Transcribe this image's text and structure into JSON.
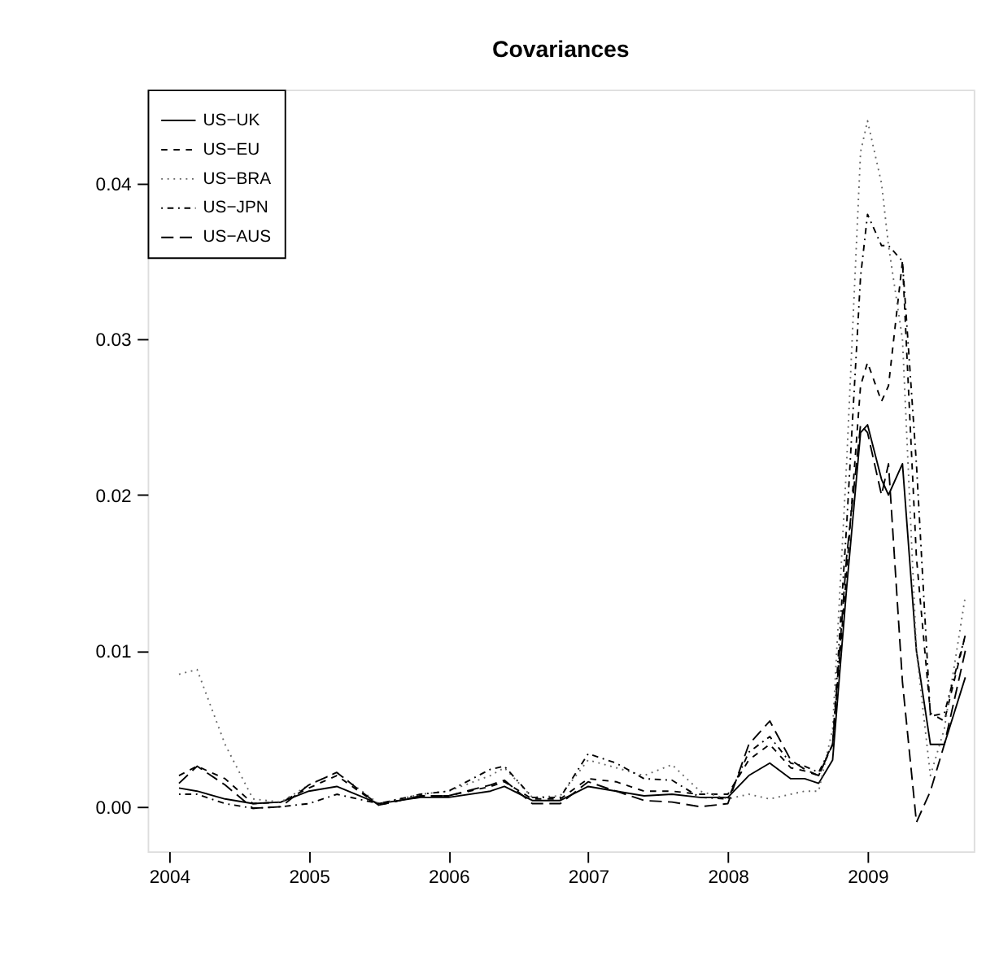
{
  "chart_data": {
    "type": "line",
    "title": "Covariances",
    "x": [
      2004.07,
      2004.2,
      2004.4,
      2004.6,
      2004.8,
      2005.0,
      2005.2,
      2005.5,
      2005.8,
      2006.0,
      2006.3,
      2006.4,
      2006.6,
      2006.8,
      2007.0,
      2007.2,
      2007.4,
      2007.6,
      2007.8,
      2008.0,
      2008.15,
      2008.3,
      2008.45,
      2008.55,
      2008.65,
      2008.75,
      2008.85,
      2008.95,
      2009.0,
      2009.1,
      2009.15,
      2009.25,
      2009.35,
      2009.45,
      2009.55,
      2009.7
    ],
    "series": [
      {
        "name": "US−UK",
        "color": "#000000",
        "line_style": "solid",
        "values": [
          0.0012,
          0.001,
          0.0005,
          0.0002,
          0.0003,
          0.001,
          0.0013,
          0.0002,
          0.0006,
          0.0006,
          0.001,
          0.0013,
          0.0004,
          0.0004,
          0.0013,
          0.001,
          0.0007,
          0.0008,
          0.0006,
          0.0006,
          0.002,
          0.0028,
          0.0018,
          0.0018,
          0.0015,
          0.003,
          0.014,
          0.024,
          0.0245,
          0.021,
          0.02,
          0.022,
          0.01,
          0.004,
          0.004,
          0.0083
        ]
      },
      {
        "name": "US−EU",
        "color": "#000000",
        "line_style": "dashed",
        "values": [
          0.002,
          0.0026,
          0.0018,
          0.0002,
          0.0003,
          0.0012,
          0.002,
          0.0001,
          0.0007,
          0.0007,
          0.0013,
          0.0016,
          0.0005,
          0.0005,
          0.0018,
          0.0016,
          0.001,
          0.001,
          0.0008,
          0.0008,
          0.003,
          0.004,
          0.0025,
          0.0023,
          0.002,
          0.004,
          0.015,
          0.027,
          0.0285,
          0.026,
          0.027,
          0.035,
          0.016,
          0.006,
          0.0055,
          0.011
        ]
      },
      {
        "name": "US−BRA",
        "color": "#666666",
        "line_style": "dotted",
        "values": [
          0.0085,
          0.0088,
          0.004,
          0.0005,
          0.0003,
          0.0014,
          0.0022,
          0.0002,
          0.0008,
          0.001,
          0.002,
          0.0025,
          0.0006,
          0.0007,
          0.003,
          0.0025,
          0.002,
          0.0027,
          0.001,
          0.0005,
          0.0008,
          0.0005,
          0.0008,
          0.001,
          0.001,
          0.005,
          0.022,
          0.042,
          0.044,
          0.04,
          0.036,
          0.03,
          0.01,
          0.002,
          0.005,
          0.0135
        ]
      },
      {
        "name": "US−JPN",
        "color": "#000000",
        "line_style": "dotdash",
        "values": [
          0.0008,
          0.0008,
          0.0002,
          -0.0001,
          0.0,
          0.0002,
          0.0008,
          0.0002,
          0.0008,
          0.001,
          0.0024,
          0.0026,
          0.0006,
          0.0006,
          0.0034,
          0.0028,
          0.0018,
          0.0017,
          0.0006,
          0.0005,
          0.0035,
          0.0045,
          0.0028,
          0.0026,
          0.0022,
          0.004,
          0.018,
          0.034,
          0.038,
          0.036,
          0.036,
          0.035,
          0.022,
          0.0058,
          0.006,
          0.011
        ]
      },
      {
        "name": "US−AUS",
        "color": "#000000",
        "line_style": "longdash",
        "values": [
          0.0015,
          0.0026,
          0.0014,
          -0.0001,
          0.0,
          0.0014,
          0.0022,
          0.0001,
          0.0007,
          0.0007,
          0.0014,
          0.0017,
          0.0002,
          0.0002,
          0.0016,
          0.001,
          0.0004,
          0.0003,
          0.0,
          0.0002,
          0.004,
          0.0055,
          0.003,
          0.0024,
          0.002,
          0.004,
          0.016,
          0.0245,
          0.024,
          0.02,
          0.022,
          0.008,
          -0.001,
          0.001,
          0.004,
          0.01
        ]
      }
    ],
    "xlim": [
      2003.846,
      2009.76
    ],
    "xticks": [
      2004,
      2005,
      2006,
      2007,
      2008,
      2009
    ],
    "ylim": [
      -0.00286,
      0.046
    ],
    "yticks": [
      {
        "value": 0,
        "label": "0.00"
      },
      {
        "value": 0.01,
        "label": "0.01"
      },
      {
        "value": 0.02,
        "label": "0.02"
      },
      {
        "value": 0.03,
        "label": "0.03"
      },
      {
        "value": 0.04,
        "label": "0.04"
      }
    ],
    "legend": "top left",
    "grid": false
  }
}
